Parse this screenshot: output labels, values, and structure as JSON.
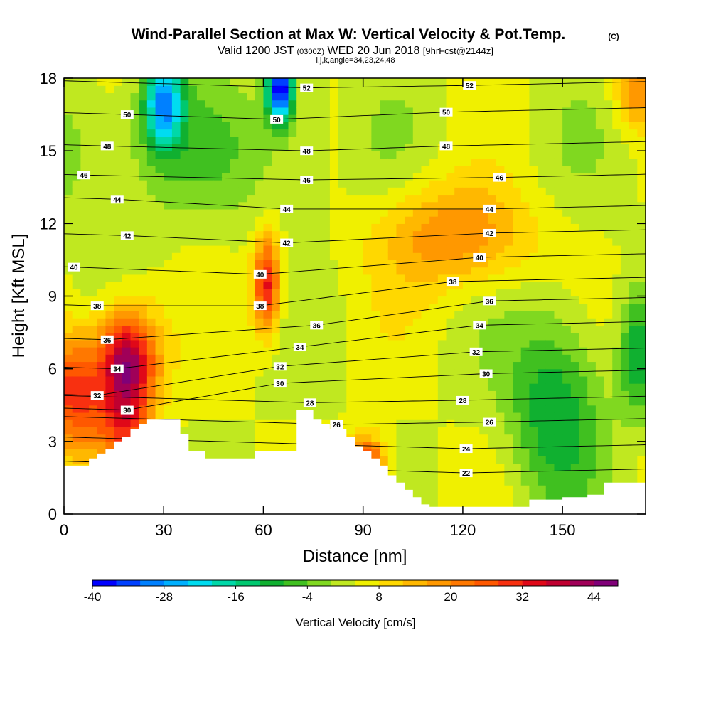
{
  "chart_data": {
    "type": "heatmap",
    "title": "Wind-Parallel Section at Max W: Vertical Velocity & Pot.Temp.",
    "title_mark": "(C)",
    "subtitle_parts": {
      "valid": "Valid 1200 JST",
      "utc": "(0300Z)",
      "date": "WED 20 Jun 2018",
      "fcst": "[9hrFcst@2144z]"
    },
    "subtitle2": "i,j,k,angle=34,23,24,48",
    "xlabel": "Distance [nm]",
    "ylabel": "Height [Kft MSL]",
    "xlim": [
      0,
      175
    ],
    "ylim": [
      0,
      18
    ],
    "xticks": [
      "0",
      "30",
      "60",
      "90",
      "120",
      "150"
    ],
    "yticks": [
      "0",
      "3",
      "6",
      "9",
      "12",
      "15",
      "18"
    ],
    "colorbar": {
      "label": "Vertical Velocity [cm/s]",
      "min": -40,
      "max": 48,
      "step": 4,
      "ticks": [
        "-40",
        "-28",
        "-16",
        "-4",
        "8",
        "20",
        "32",
        "44"
      ],
      "colors": [
        "#0000ff",
        "#0040ff",
        "#0080ff",
        "#00b0ff",
        "#00dcf0",
        "#00d8a8",
        "#00c870",
        "#10b030",
        "#40c020",
        "#80d820",
        "#c0e820",
        "#f0f000",
        "#ffd800",
        "#ffb800",
        "#ff9800",
        "#ff7800",
        "#ff5800",
        "#f83010",
        "#e00818",
        "#c00030",
        "#a00058",
        "#800078"
      ]
    },
    "velocity_features": [
      {
        "x": 19,
        "y": 6.2,
        "value": 46,
        "sx": 3.5,
        "sy": 2.2
      },
      {
        "x": 3,
        "y": 5.0,
        "value": 30,
        "sx": 3.5,
        "sy": 2.5
      },
      {
        "x": 61,
        "y": 9.5,
        "value": 34,
        "sx": 1.6,
        "sy": 2.0
      },
      {
        "x": 91,
        "y": 2.1,
        "value": 32,
        "sx": 2.2,
        "sy": 1.1
      },
      {
        "x": 118,
        "y": 11.5,
        "value": 20,
        "sx": 9,
        "sy": 2.2
      },
      {
        "x": 65,
        "y": 17.5,
        "value": -40,
        "sx": 1.6,
        "sy": 1.3
      },
      {
        "x": 30,
        "y": 17.0,
        "value": -28,
        "sx": 2.3,
        "sy": 1.8
      },
      {
        "x": 18,
        "y": 3.5,
        "value": 22,
        "sx": 3.0,
        "sy": 1.5
      },
      {
        "x": 148,
        "y": 4.5,
        "value": -12,
        "sx": 5.5,
        "sy": 4.0
      },
      {
        "x": 172,
        "y": 6.5,
        "value": -10,
        "sx": 2.0,
        "sy": 2.5
      },
      {
        "x": 172,
        "y": 17.5,
        "value": 20,
        "sx": 2.5,
        "sy": 1.5
      }
    ],
    "terrain_kft": [
      2.0,
      2.0,
      2.0,
      2.3,
      2.5,
      2.7,
      3.0,
      3.2,
      3.5,
      3.7,
      3.9,
      3.9,
      3.9,
      3.9,
      3.3,
      2.6,
      2.6,
      2.3,
      2.3,
      2.3,
      2.3,
      2.3,
      2.3,
      2.6,
      2.6,
      2.6,
      2.6,
      2.6,
      4.3,
      4.3,
      3.9,
      3.7,
      3.5,
      3.5,
      3.2,
      2.8,
      2.6,
      2.3,
      2.0,
      1.6,
      1.3,
      1.0,
      0.7,
      0.4,
      0.3,
      0.3,
      0.3,
      0.3,
      0.3,
      0.3,
      0.3,
      0.3,
      0.3,
      0.3,
      0.3,
      0.3,
      0.6,
      0.6,
      0.6,
      0.6,
      0.7,
      0.7,
      0.7,
      0.8,
      0.8,
      1.3,
      1.3,
      1.3,
      1.3,
      1.3
    ],
    "terrain_dx": 2.5,
    "theta_contours": {
      "levels": [
        22,
        24,
        26,
        28,
        30,
        32,
        34,
        36,
        38,
        40,
        42,
        44,
        46,
        48,
        50,
        52
      ],
      "labels": [
        {
          "text": "22",
          "x": 121,
          "y": 1.7
        },
        {
          "text": "24",
          "x": 121,
          "y": 2.7
        },
        {
          "text": "26",
          "x": 128,
          "y": 3.8
        },
        {
          "text": "28",
          "x": 74,
          "y": 4.6
        },
        {
          "text": "28",
          "x": 120,
          "y": 4.7
        },
        {
          "text": "26",
          "x": 82,
          "y": 3.7
        },
        {
          "text": "30",
          "x": 19,
          "y": 4.3
        },
        {
          "text": "30",
          "x": 65,
          "y": 5.4
        },
        {
          "text": "30",
          "x": 127,
          "y": 5.8
        },
        {
          "text": "32",
          "x": 10,
          "y": 4.9
        },
        {
          "text": "32",
          "x": 65,
          "y": 6.1
        },
        {
          "text": "32",
          "x": 124,
          "y": 6.7
        },
        {
          "text": "34",
          "x": 16,
          "y": 6.0
        },
        {
          "text": "34",
          "x": 71,
          "y": 6.9
        },
        {
          "text": "34",
          "x": 125,
          "y": 7.8
        },
        {
          "text": "36",
          "x": 13,
          "y": 7.2
        },
        {
          "text": "36",
          "x": 76,
          "y": 7.8
        },
        {
          "text": "36",
          "x": 128,
          "y": 8.8
        },
        {
          "text": "38",
          "x": 10,
          "y": 8.6
        },
        {
          "text": "38",
          "x": 59,
          "y": 8.6
        },
        {
          "text": "38",
          "x": 117,
          "y": 9.6
        },
        {
          "text": "40",
          "x": 3,
          "y": 10.2
        },
        {
          "text": "40",
          "x": 59,
          "y": 9.9
        },
        {
          "text": "40",
          "x": 125,
          "y": 10.6
        },
        {
          "text": "42",
          "x": 19,
          "y": 11.5
        },
        {
          "text": "42",
          "x": 67,
          "y": 11.2
        },
        {
          "text": "42",
          "x": 128,
          "y": 11.6
        },
        {
          "text": "44",
          "x": 16,
          "y": 13.0
        },
        {
          "text": "44",
          "x": 67,
          "y": 12.6
        },
        {
          "text": "44",
          "x": 128,
          "y": 12.6
        },
        {
          "text": "46",
          "x": 6,
          "y": 14.0
        },
        {
          "text": "46",
          "x": 73,
          "y": 13.8
        },
        {
          "text": "46",
          "x": 131,
          "y": 13.9
        },
        {
          "text": "48",
          "x": 13,
          "y": 15.2
        },
        {
          "text": "48",
          "x": 73,
          "y": 15.0
        },
        {
          "text": "48",
          "x": 115,
          "y": 15.2
        },
        {
          "text": "50",
          "x": 19,
          "y": 16.5
        },
        {
          "text": "50",
          "x": 64,
          "y": 16.3
        },
        {
          "text": "50",
          "x": 115,
          "y": 16.6
        },
        {
          "text": "52",
          "x": 73,
          "y": 17.6
        },
        {
          "text": "52",
          "x": 122,
          "y": 17.7
        }
      ]
    }
  }
}
